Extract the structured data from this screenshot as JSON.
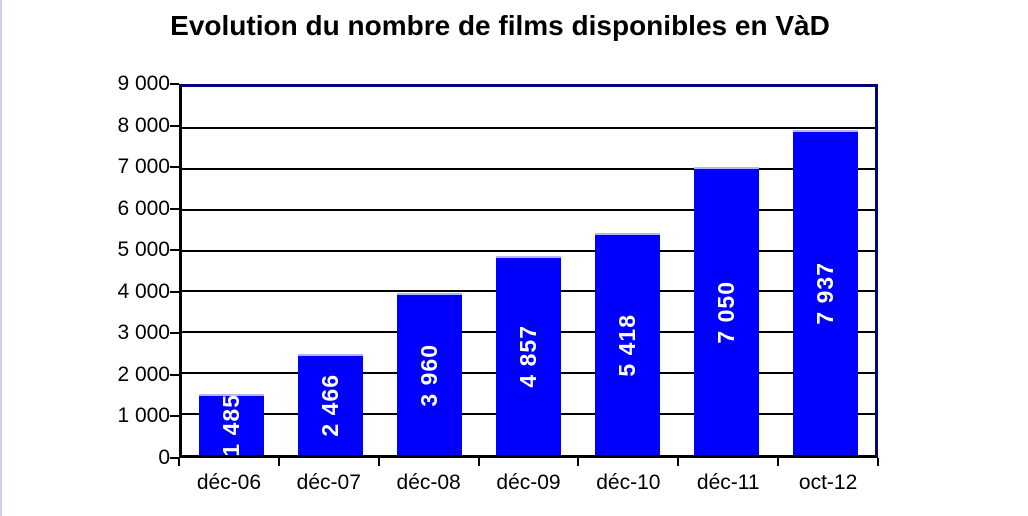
{
  "chart_data": {
    "type": "bar",
    "title": "Evolution du nombre de films disponibles en VàD",
    "categories": [
      "déc-06",
      "déc-07",
      "déc-08",
      "déc-09",
      "déc-10",
      "déc-11",
      "oct-12"
    ],
    "values": [
      1485,
      2466,
      3960,
      4857,
      5418,
      7050,
      7937
    ],
    "value_labels": [
      "1 485",
      "2 466",
      "3 960",
      "4 857",
      "5 418",
      "7 050",
      "7 937"
    ],
    "xlabel": "",
    "ylabel": "",
    "ylim": [
      0,
      9000
    ],
    "ytick_interval": 1000,
    "ytick_labels": [
      "0",
      "1 000",
      "2 000",
      "3 000",
      "4 000",
      "5 000",
      "6 000",
      "7 000",
      "8 000",
      "9 000"
    ],
    "grid": "horizontal-on",
    "legend": "none",
    "colors": {
      "bar_fill": "#0000ff",
      "bar_top_edge": "#b3b3f5",
      "bar_value_text": "#ffffff",
      "gridline": "#000000",
      "axis_line": "#000000",
      "plot_border_top_right": "#000080",
      "title_text": "#000000",
      "axis_text": "#000000",
      "background": "#ffffff",
      "page_left_edge": "#c9d0e9"
    }
  }
}
